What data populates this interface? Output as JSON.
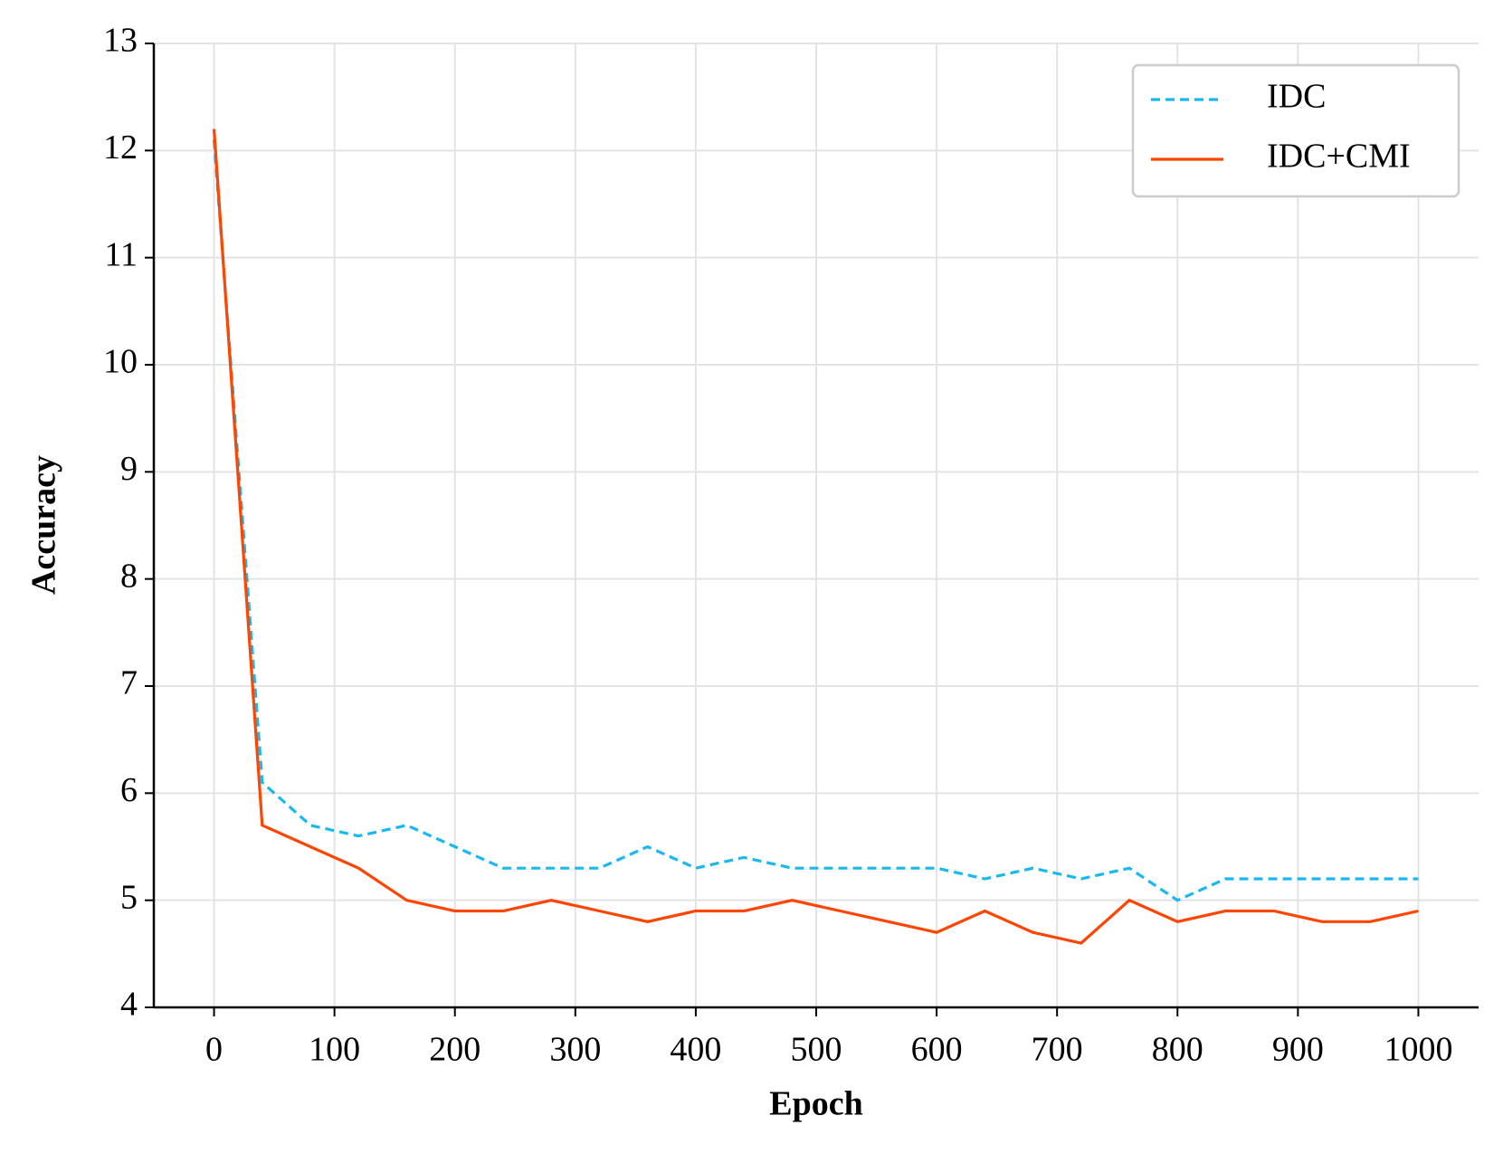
{
  "chart_data": {
    "type": "line",
    "x_label": "Epoch",
    "y_label": "Accuracy",
    "x": [
      0,
      40,
      80,
      120,
      160,
      200,
      240,
      280,
      320,
      360,
      400,
      440,
      480,
      520,
      560,
      600,
      640,
      680,
      720,
      760,
      800,
      840,
      880,
      920,
      960,
      1000
    ],
    "series": [
      {
        "name": "IDC",
        "color": "#1ab8f0",
        "dash": true,
        "values": [
          12.1,
          6.1,
          5.7,
          5.6,
          5.7,
          5.5,
          5.3,
          5.3,
          5.3,
          5.5,
          5.3,
          5.4,
          5.3,
          5.3,
          5.3,
          5.3,
          5.2,
          5.3,
          5.2,
          5.3,
          5.0,
          5.2,
          5.2,
          5.2,
          5.2,
          5.2
        ]
      },
      {
        "name": "IDC+CMI",
        "color": "#ff4500",
        "dash": false,
        "values": [
          12.2,
          5.7,
          5.5,
          5.3,
          5.0,
          4.9,
          4.9,
          5.0,
          4.9,
          4.8,
          4.9,
          4.9,
          5.0,
          4.9,
          4.8,
          4.7,
          4.9,
          4.7,
          4.6,
          5.0,
          4.8,
          4.9,
          4.9,
          4.8,
          4.8,
          4.9
        ]
      }
    ],
    "xlim": [
      -50,
      1050
    ],
    "ylim": [
      4,
      13
    ],
    "xticks": [
      0,
      100,
      200,
      300,
      400,
      500,
      600,
      700,
      800,
      900,
      1000
    ],
    "yticks": [
      4,
      5,
      6,
      7,
      8,
      9,
      10,
      11,
      12,
      13
    ],
    "grid": true,
    "legend": "upper right"
  }
}
